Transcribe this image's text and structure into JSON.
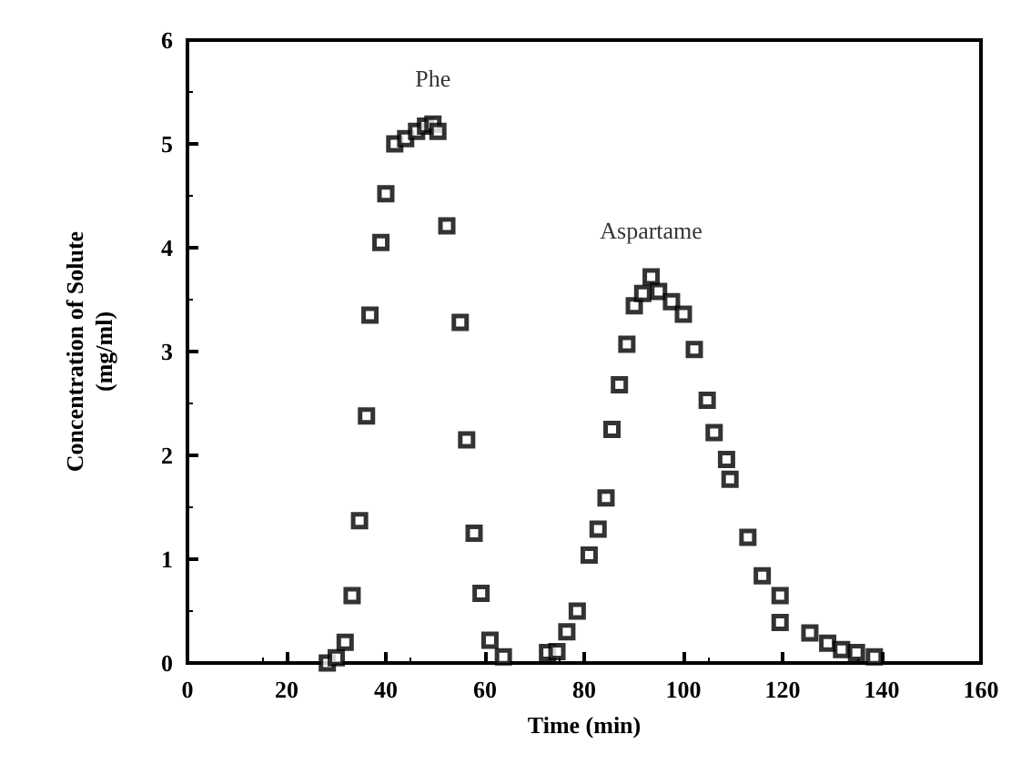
{
  "chart_data": {
    "type": "scatter",
    "xlabel": "Time (min)",
    "ylabel": "Concentration of Solute\n(mg/ml)",
    "xlim": [
      0,
      160
    ],
    "xticks": [
      0,
      20,
      40,
      60,
      80,
      100,
      120,
      140,
      160
    ],
    "ylim": [
      0,
      6
    ],
    "yticks": [
      0,
      1,
      2,
      3,
      4,
      5,
      6
    ],
    "grid": false,
    "legend": false,
    "marker": "square",
    "series": [
      {
        "name": "Phe",
        "color": "#000000",
        "x": [
          28.2,
          30,
          31.8,
          33.2,
          34.7,
          36.1,
          36.8,
          39,
          40,
          41.8,
          44,
          46.2,
          48,
          49.5,
          50.5,
          52.3,
          55,
          56.3,
          57.8,
          59.2,
          61,
          63.7
        ],
        "values": [
          0.0,
          0.05,
          0.2,
          0.65,
          1.37,
          2.38,
          3.35,
          4.05,
          4.52,
          5.0,
          5.05,
          5.12,
          5.17,
          5.19,
          5.12,
          4.21,
          3.28,
          2.15,
          1.25,
          0.67,
          0.22,
          0.06
        ]
      },
      {
        "name": "Aspartame",
        "color": "#000000",
        "x": [
          72.6,
          74.5,
          76.5,
          78.6,
          81,
          82.8,
          84.4,
          85.6,
          87.1,
          88.6,
          90.1,
          91.8,
          93.5,
          95.0,
          97.6,
          100,
          102.2,
          104.8,
          106.2,
          108.7,
          109.4,
          113,
          115.9,
          119.5,
          119.5,
          125.5,
          129.1,
          131.9,
          134.9,
          138.5
        ],
        "values": [
          0.1,
          0.11,
          0.3,
          0.5,
          1.04,
          1.29,
          1.59,
          2.25,
          2.68,
          3.07,
          3.44,
          3.56,
          3.72,
          3.58,
          3.48,
          3.36,
          3.02,
          2.53,
          2.22,
          1.96,
          1.77,
          1.21,
          0.84,
          0.65,
          0.39,
          0.29,
          0.19,
          0.13,
          0.1,
          0.06
        ]
      }
    ]
  }
}
